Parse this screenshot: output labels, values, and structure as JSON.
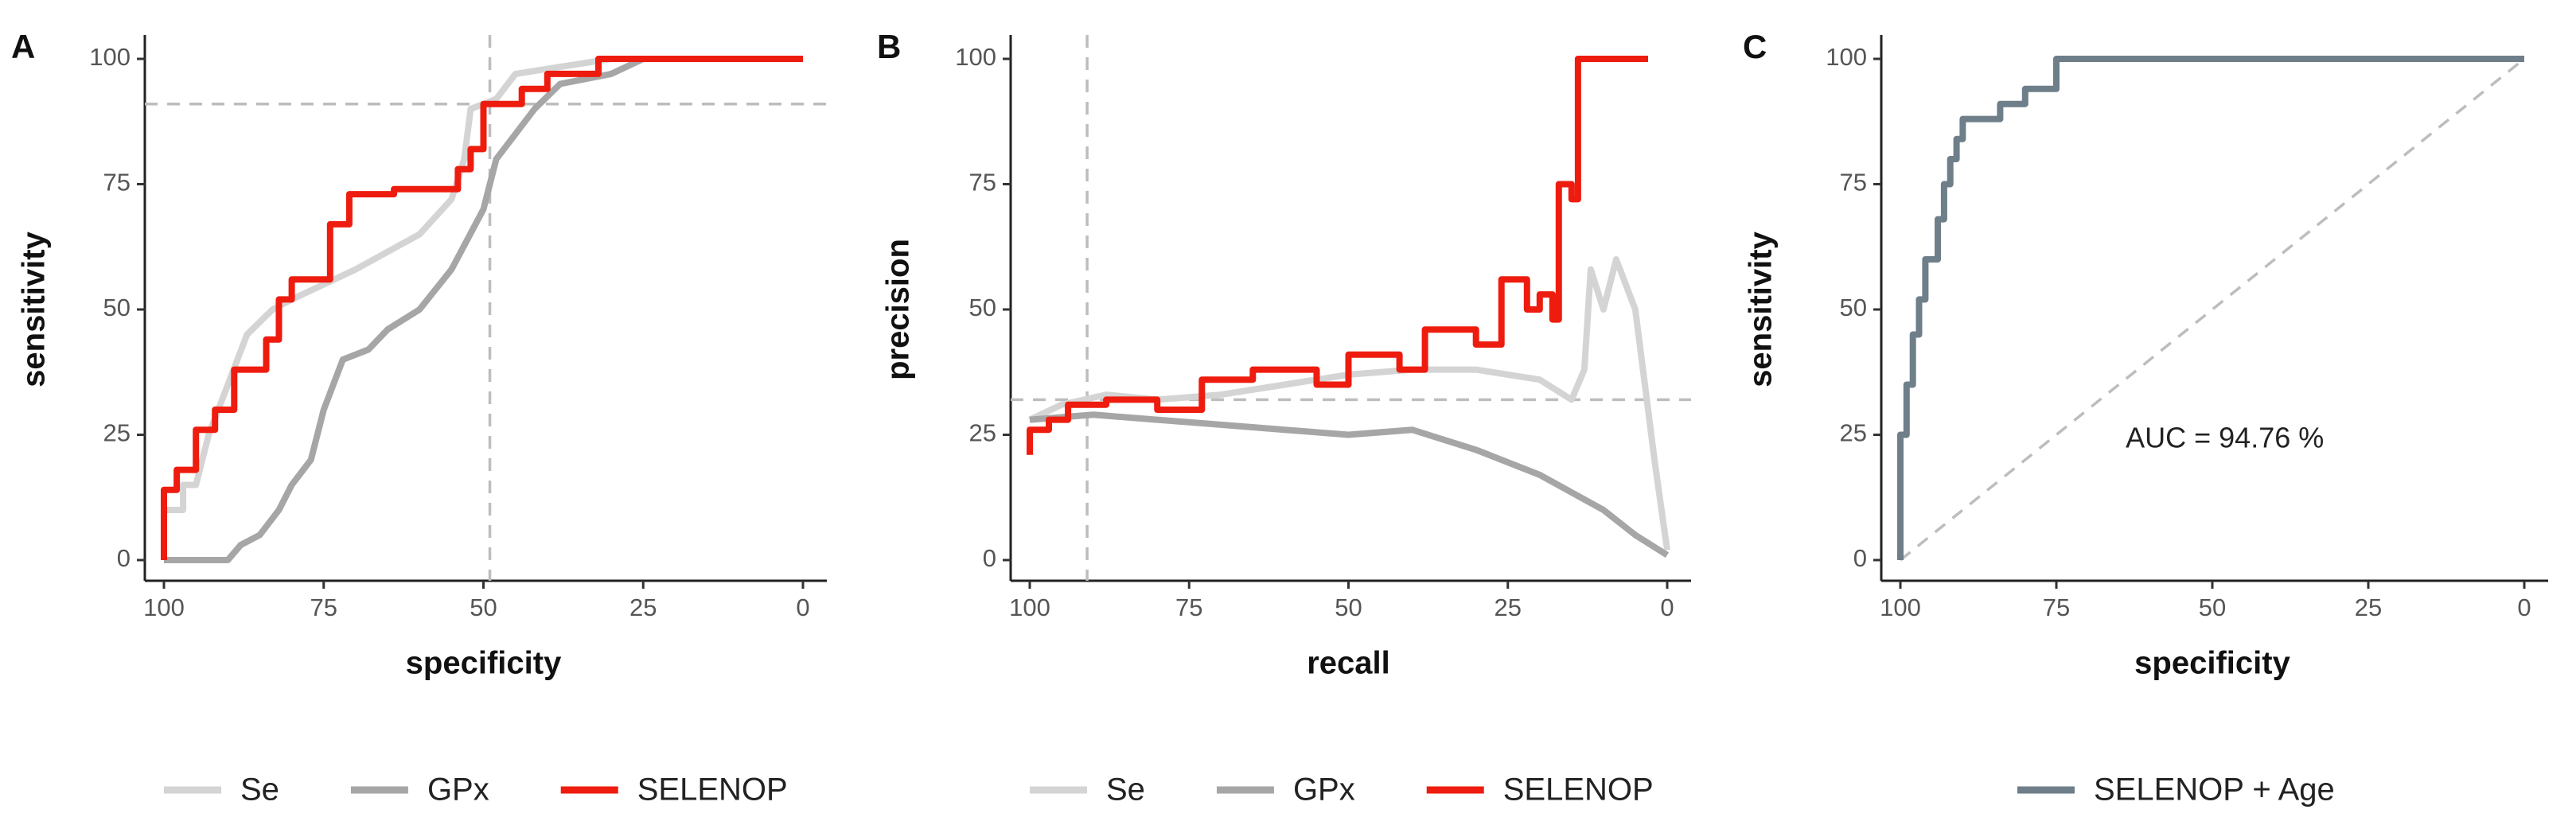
{
  "chart_data": [
    {
      "type": "line",
      "panel": "A",
      "x_label": "specificity",
      "y_label": "sensitivity",
      "xlim": [
        100,
        0
      ],
      "ylim": [
        0,
        100
      ],
      "xticks": [
        100,
        75,
        50,
        25,
        0
      ],
      "yticks": [
        0,
        25,
        50,
        75,
        100
      ],
      "hline": 91,
      "vline": 49,
      "series": [
        {
          "name": "Se",
          "color": "#d4d4d4",
          "x": [
            100,
            100,
            97,
            97,
            95,
            93,
            90,
            87,
            83,
            80,
            75,
            70,
            60,
            55,
            53,
            52,
            48,
            45,
            40,
            30,
            0
          ],
          "values": [
            0,
            10,
            10,
            15,
            15,
            25,
            35,
            45,
            50,
            52,
            55,
            58,
            65,
            72,
            80,
            90,
            92,
            97,
            98,
            100,
            100
          ]
        },
        {
          "name": "GPx",
          "color": "#a6a6a6",
          "x": [
            100,
            90,
            88,
            85,
            82,
            80,
            77,
            75,
            72,
            68,
            65,
            60,
            55,
            50,
            48,
            45,
            42,
            38,
            30,
            25,
            0
          ],
          "values": [
            0,
            0,
            3,
            5,
            10,
            15,
            20,
            30,
            40,
            42,
            46,
            50,
            58,
            70,
            80,
            85,
            90,
            95,
            97,
            100,
            100
          ]
        },
        {
          "name": "SELENOP",
          "color": "#ee1c0e",
          "x": [
            100,
            100,
            98,
            98,
            95,
            95,
            92,
            92,
            89,
            89,
            84,
            84,
            82,
            82,
            80,
            80,
            74,
            74,
            71,
            71,
            64,
            64,
            54,
            54,
            52,
            52,
            50,
            50,
            44,
            44,
            40,
            40,
            32,
            32,
            0
          ],
          "values": [
            0,
            14,
            14,
            18,
            18,
            26,
            26,
            30,
            30,
            38,
            38,
            44,
            44,
            52,
            52,
            56,
            56,
            67,
            67,
            73,
            73,
            74,
            74,
            78,
            78,
            82,
            82,
            91,
            91,
            94,
            94,
            97,
            97,
            100,
            100
          ]
        }
      ]
    },
    {
      "type": "line",
      "panel": "B",
      "x_label": "recall",
      "y_label": "precision",
      "xlim": [
        100,
        0
      ],
      "ylim": [
        0,
        100
      ],
      "xticks": [
        100,
        75,
        50,
        25,
        0
      ],
      "yticks": [
        0,
        25,
        50,
        75,
        100
      ],
      "hline": 32,
      "vline": 91,
      "series": [
        {
          "name": "Se",
          "color": "#d4d4d4",
          "x": [
            100,
            95,
            88,
            80,
            70,
            60,
            50,
            40,
            30,
            20,
            15,
            13,
            12,
            10,
            8,
            5,
            3,
            2,
            0
          ],
          "values": [
            28,
            31,
            33,
            32,
            33,
            35,
            37,
            38,
            38,
            36,
            32,
            38,
            58,
            50,
            60,
            50,
            30,
            20,
            2
          ]
        },
        {
          "name": "GPx",
          "color": "#a6a6a6",
          "x": [
            100,
            90,
            80,
            70,
            60,
            50,
            40,
            30,
            20,
            10,
            5,
            0
          ],
          "values": [
            28,
            29,
            28,
            27,
            26,
            25,
            26,
            22,
            17,
            10,
            5,
            1
          ]
        },
        {
          "name": "SELENOP",
          "color": "#ee1c0e",
          "x": [
            100,
            100,
            97,
            97,
            94,
            94,
            88,
            88,
            80,
            80,
            73,
            73,
            65,
            65,
            55,
            55,
            50,
            50,
            42,
            42,
            38,
            38,
            30,
            30,
            26,
            26,
            22,
            22,
            20,
            20,
            18,
            18,
            17,
            17,
            15,
            15,
            14,
            14,
            3
          ],
          "values": [
            21,
            26,
            26,
            28,
            28,
            31,
            31,
            32,
            32,
            30,
            30,
            36,
            36,
            38,
            38,
            35,
            35,
            41,
            41,
            38,
            38,
            46,
            46,
            43,
            43,
            56,
            56,
            50,
            50,
            53,
            53,
            48,
            48,
            75,
            75,
            72,
            72,
            100,
            100
          ]
        }
      ]
    },
    {
      "type": "line",
      "panel": "C",
      "x_label": "specificity",
      "y_label": "sensitivity",
      "xlim": [
        100,
        0
      ],
      "ylim": [
        0,
        100
      ],
      "xticks": [
        100,
        75,
        50,
        25,
        0
      ],
      "yticks": [
        0,
        25,
        50,
        75,
        100
      ],
      "annotation": "AUC = 94.76 %",
      "diagonal": true,
      "series": [
        {
          "name": "SELENOP + Age",
          "color": "#6e7f8a",
          "x": [
            100,
            100,
            99,
            99,
            98,
            98,
            97,
            97,
            96,
            96,
            94,
            94,
            93,
            93,
            92,
            92,
            91,
            91,
            90,
            90,
            84,
            84,
            80,
            80,
            75,
            75,
            0
          ],
          "values": [
            0,
            25,
            25,
            35,
            35,
            45,
            45,
            52,
            52,
            60,
            60,
            68,
            68,
            75,
            75,
            80,
            80,
            84,
            84,
            88,
            88,
            91,
            91,
            94,
            94,
            100,
            100
          ]
        }
      ]
    }
  ]
}
